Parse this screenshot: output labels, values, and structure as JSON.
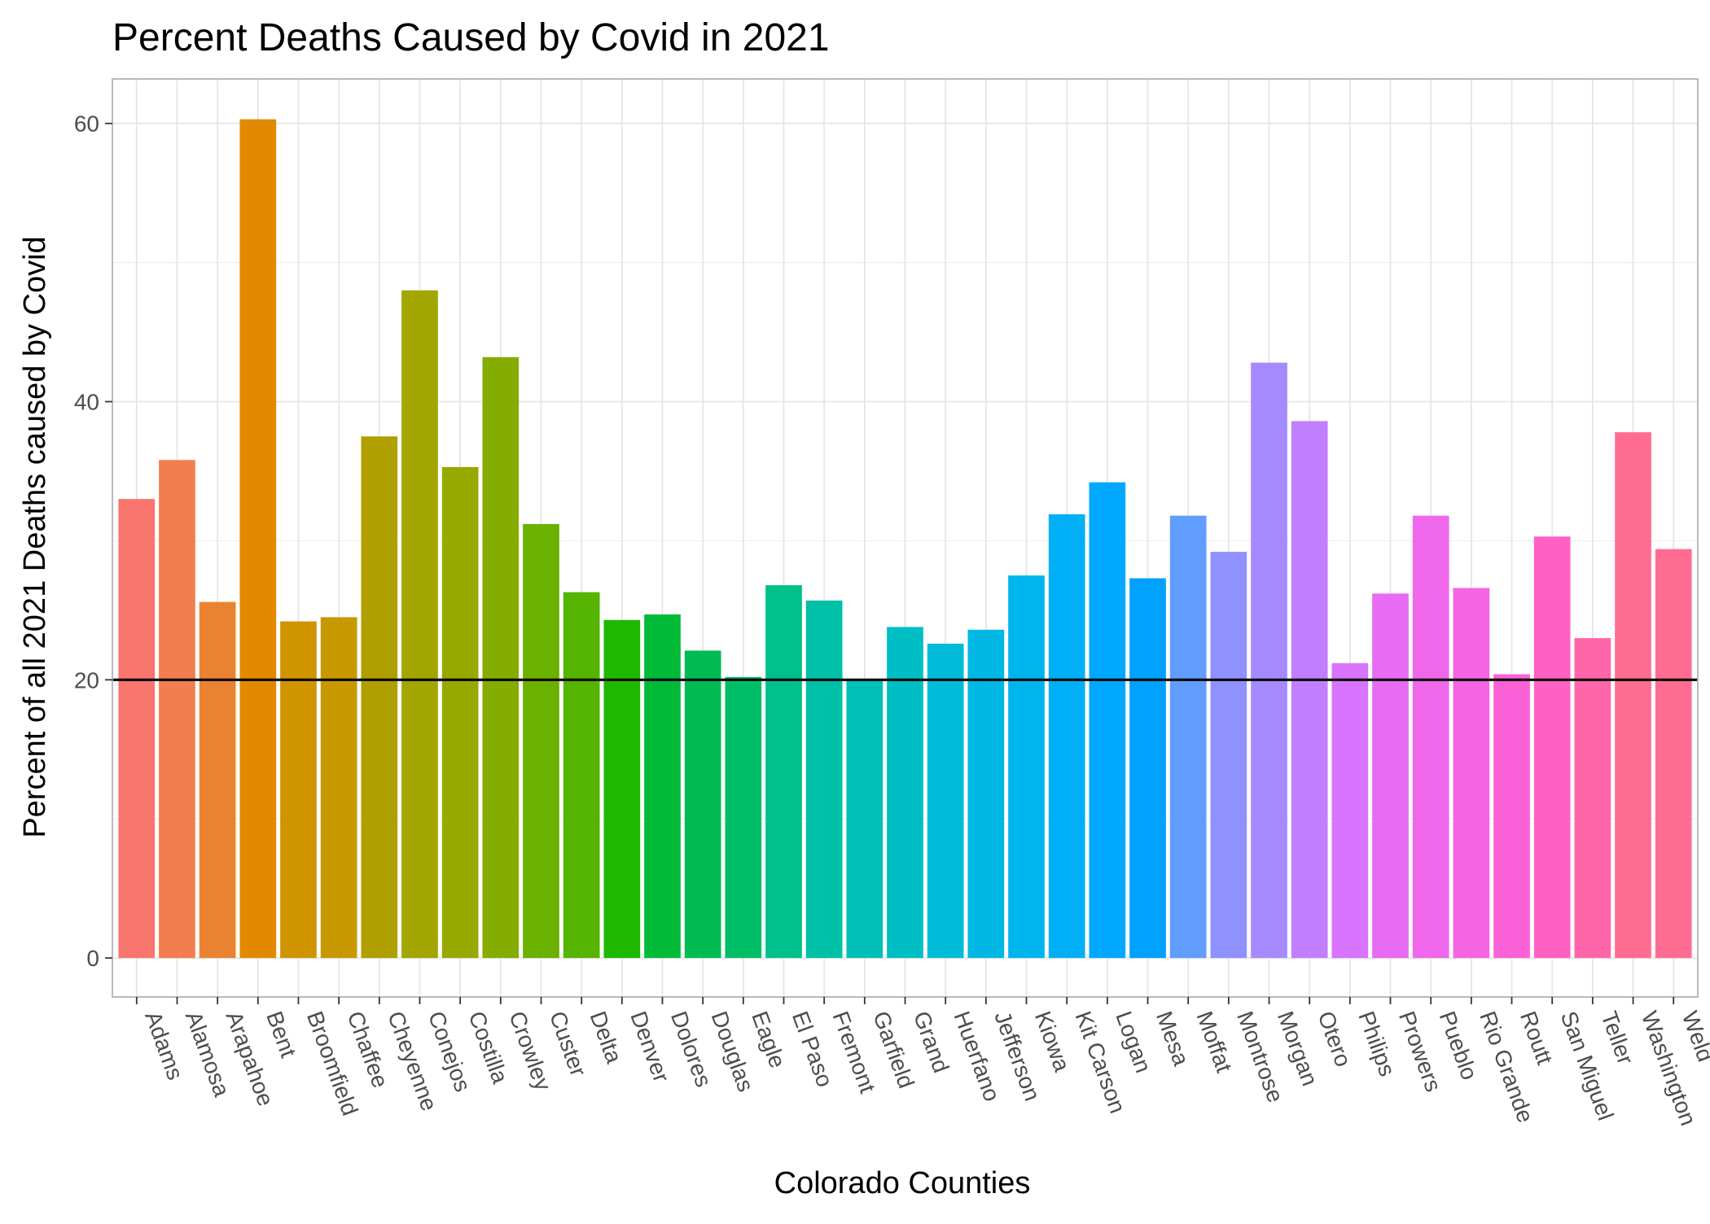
{
  "chart_data": {
    "type": "bar",
    "title": "Percent Deaths Caused by Covid in 2021",
    "xlabel": "Colorado Counties",
    "ylabel": "Percent of all 2021 Deaths caused by Covid",
    "ylim": [
      -2.8,
      63.2
    ],
    "yticks": [
      "0",
      "20",
      "40",
      "60"
    ],
    "ytick_values": [
      0,
      20,
      40,
      60
    ],
    "grid": true,
    "reference_line": 20,
    "categories": [
      "Adams",
      "Alamosa",
      "Arapahoe",
      "Bent",
      "Broomfield",
      "Chaffee",
      "Cheyenne",
      "Conejos",
      "Costilla",
      "Crowley",
      "Custer",
      "Delta",
      "Denver",
      "Dolores",
      "Douglas",
      "Eagle",
      "El Paso",
      "Fremont",
      "Garfield",
      "Grand",
      "Huerfano",
      "Jefferson",
      "Kiowa",
      "Kit Carson",
      "Logan",
      "Mesa",
      "Moffat",
      "Montrose",
      "Morgan",
      "Otero",
      "Philips",
      "Prowers",
      "Pueblo",
      "Rio Grande",
      "Routt",
      "San Miguel",
      "Teller",
      "Washington",
      "Weld"
    ],
    "values": [
      33.0,
      35.8,
      25.6,
      60.3,
      24.2,
      24.5,
      37.5,
      48.0,
      35.3,
      43.2,
      31.2,
      26.3,
      24.3,
      24.7,
      22.1,
      20.2,
      26.8,
      25.7,
      20.0,
      23.8,
      22.6,
      23.6,
      27.5,
      31.9,
      34.2,
      27.3,
      31.8,
      29.2,
      42.8,
      38.6,
      21.2,
      26.2,
      31.8,
      26.6,
      20.4,
      30.3,
      23.0,
      37.8,
      29.4
    ],
    "colors": [
      "#F8766D",
      "#F17E4F",
      "#EA8331",
      "#E38900",
      "#D09400",
      "#C79800",
      "#B09F00",
      "#A3A500",
      "#96A900",
      "#84AD00",
      "#6BB100",
      "#54B400",
      "#1FB800",
      "#00BA38",
      "#00BB52",
      "#00BE66",
      "#00C08B",
      "#00C0A7",
      "#00BFB8",
      "#00BFC4",
      "#00BCD8",
      "#00B8E3",
      "#00B5EE",
      "#00AFF6",
      "#00A9FF",
      "#00A1FF",
      "#619CFF",
      "#8F91FF",
      "#A58AFF",
      "#C17FFF",
      "#D874FD",
      "#E76BF3",
      "#EF67EB",
      "#F564E3",
      "#FB61D7",
      "#FF61C3",
      "#FF66AA",
      "#FF6C91",
      "#FF6C91"
    ]
  }
}
